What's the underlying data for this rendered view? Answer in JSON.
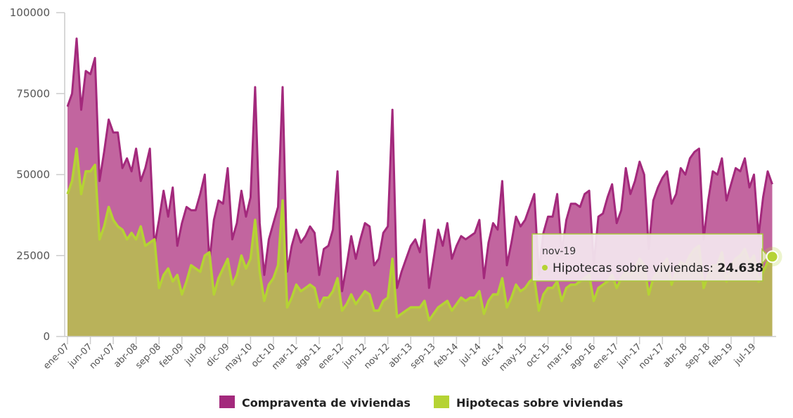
{
  "chart_data": {
    "type": "area",
    "title": "",
    "xlabel": "",
    "ylabel": "",
    "ylim": [
      0,
      100000
    ],
    "yticks": [
      "0",
      "25000",
      "50000",
      "75000",
      "100000"
    ],
    "grid": false,
    "legend_position": "bottom",
    "start_month": "ene-07",
    "end_month": "nov-19",
    "xtick_labels": [
      "ene-07",
      "jun-07",
      "nov-07",
      "abr-08",
      "sep-08",
      "feb-09",
      "jul-09",
      "dic-09",
      "may-10",
      "oct-10",
      "mar-11",
      "ago-11",
      "ene-12",
      "jun-12",
      "nov-12",
      "abr-13",
      "sep-13",
      "feb-14",
      "jul-14",
      "dic-14",
      "may-15",
      "oct-15",
      "mar-16",
      "ago-16",
      "ene-17",
      "jun-17",
      "nov-17",
      "abr-18",
      "sep-18",
      "feb-19",
      "jul-19"
    ],
    "series": [
      {
        "name": "Compraventa de viviendas",
        "color": "#a3297c",
        "fill": "#c2659f",
        "values": [
          71000,
          75000,
          92000,
          70000,
          82000,
          81000,
          86000,
          48000,
          57000,
          67000,
          63000,
          63000,
          52000,
          55000,
          51000,
          58000,
          48000,
          52000,
          58000,
          28000,
          36000,
          45000,
          37000,
          46000,
          28000,
          35000,
          40000,
          39000,
          39000,
          44000,
          50000,
          23000,
          36000,
          42000,
          41000,
          52000,
          30000,
          35000,
          45000,
          37000,
          43000,
          77000,
          35000,
          19000,
          30000,
          35000,
          40000,
          77000,
          20000,
          28000,
          33000,
          29000,
          31000,
          34000,
          32000,
          19000,
          27000,
          28000,
          33000,
          51000,
          14000,
          22000,
          31000,
          24000,
          30000,
          35000,
          34000,
          22000,
          24000,
          32000,
          34000,
          70000,
          15000,
          20000,
          24000,
          28000,
          30000,
          26000,
          36000,
          15000,
          24000,
          33000,
          28000,
          35000,
          24000,
          28000,
          31000,
          30000,
          31000,
          32000,
          36000,
          18000,
          29000,
          35000,
          33000,
          48000,
          22000,
          29000,
          37000,
          34000,
          36000,
          40000,
          44000,
          19000,
          32000,
          37000,
          37000,
          44000,
          26000,
          36000,
          41000,
          41000,
          40000,
          44000,
          45000,
          22000,
          37000,
          38000,
          43000,
          47000,
          35000,
          39000,
          52000,
          44000,
          48000,
          54000,
          50000,
          27000,
          42000,
          46000,
          49000,
          51000,
          41000,
          44000,
          52000,
          50000,
          55000,
          57000,
          58000,
          30000,
          42000,
          51000,
          50000,
          55000,
          42000,
          47000,
          52000,
          51000,
          55000,
          46000,
          50000,
          31000,
          43000,
          51000,
          47000
        ]
      },
      {
        "name": "Hipotecas sobre viviendas",
        "color": "#b5d334",
        "fill": "#b9b25a",
        "values": [
          44000,
          48000,
          58000,
          44000,
          51000,
          51000,
          53000,
          30000,
          34000,
          40000,
          36000,
          34000,
          33000,
          30000,
          32000,
          30000,
          34000,
          28000,
          29000,
          30000,
          15000,
          19000,
          21000,
          17000,
          19000,
          13000,
          17000,
          22000,
          21000,
          20000,
          25000,
          26000,
          13000,
          18000,
          21000,
          24000,
          16000,
          19000,
          25000,
          21000,
          24000,
          36000,
          20000,
          11000,
          16000,
          18000,
          22000,
          42000,
          9000,
          12000,
          16000,
          14000,
          15000,
          16000,
          15000,
          9000,
          12000,
          12000,
          14000,
          18000,
          8000,
          10000,
          13000,
          10000,
          12000,
          14000,
          13000,
          8000,
          8000,
          11000,
          12000,
          24000,
          6000,
          7000,
          8000,
          9000,
          9000,
          9000,
          11000,
          5000,
          7000,
          9000,
          10000,
          11000,
          8000,
          10000,
          12000,
          11000,
          12000,
          12000,
          14000,
          7000,
          11000,
          13000,
          13000,
          18000,
          9000,
          12000,
          16000,
          14000,
          15000,
          17000,
          18000,
          8000,
          13000,
          15000,
          15000,
          17000,
          11000,
          15000,
          16000,
          16000,
          17000,
          18000,
          19000,
          11000,
          15000,
          16000,
          17000,
          19000,
          15000,
          18000,
          20000,
          19000,
          21000,
          24000,
          22000,
          13000,
          18000,
          20000,
          22000,
          24000,
          16000,
          20000,
          23000,
          22000,
          25000,
          27000,
          28000,
          15000,
          19000,
          22000,
          22000,
          26000,
          17000,
          22000,
          24000,
          25000,
          27000,
          23000,
          25000,
          17000,
          20000,
          23000,
          24638
        ]
      }
    ]
  },
  "tooltip": {
    "date": "nov-19",
    "series_label": "Hipotecas sobre viviendas:",
    "value": "24.638"
  },
  "legend": {
    "items": [
      {
        "label": "Compraventa de viviendas",
        "color": "#a3297c"
      },
      {
        "label": "Hipotecas sobre viviendas",
        "color": "#b5d334"
      }
    ]
  }
}
